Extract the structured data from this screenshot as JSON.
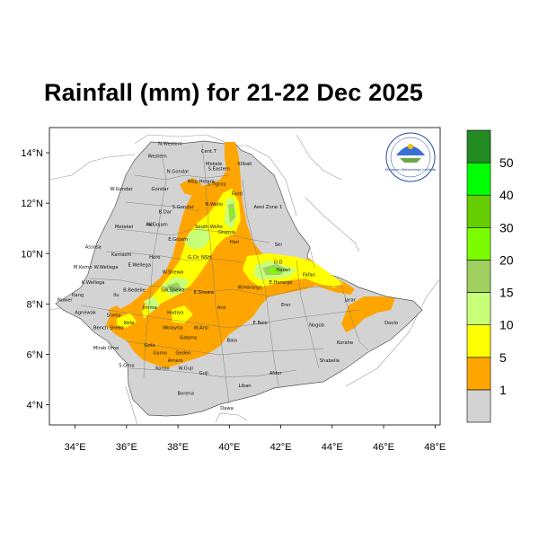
{
  "title": "Rainfall (mm) for 21-22 Dec 2025",
  "colors": {
    "land": "#d3d3d3",
    "border": "#6e6e6e",
    "bin_1": "#ffa500",
    "bin_5": "#ffff00",
    "bin_10": "#c8ff78",
    "bin_15": "#a0d060",
    "bin_20": "#7cfc00",
    "bin_30": "#66cd00",
    "bin_40": "#00ff00",
    "bin_50": "#228b22"
  },
  "axes": {
    "lon_ticks": [
      "34°E",
      "36°E",
      "38°E",
      "40°E",
      "42°E",
      "44°E",
      "46°E",
      "48°E"
    ],
    "lat_ticks": [
      "14°N",
      "12°N",
      "10°N",
      "8°N",
      "6°N",
      "4°N"
    ]
  },
  "colorbar": {
    "labels": [
      "1",
      "5",
      "10",
      "15",
      "20",
      "30",
      "40",
      "50"
    ]
  },
  "regions": [
    {
      "name": "N.Western",
      "lon": 37.7,
      "lat": 14.3
    },
    {
      "name": "Cent.T",
      "lon": 39.2,
      "lat": 14.0
    },
    {
      "name": "Western",
      "lon": 37.2,
      "lat": 13.8
    },
    {
      "name": "Mekele",
      "lon": 39.4,
      "lat": 13.5
    },
    {
      "name": "S.Eastern",
      "lon": 39.6,
      "lat": 13.3
    },
    {
      "name": "Kilbati",
      "lon": 40.6,
      "lat": 13.5
    },
    {
      "name": "N.Gondar",
      "lon": 38.0,
      "lat": 13.2
    },
    {
      "name": "S.Tigray",
      "lon": 39.5,
      "lat": 12.7
    },
    {
      "name": "W.Gondar",
      "lon": 35.8,
      "lat": 12.5
    },
    {
      "name": "Gondar",
      "lon": 37.3,
      "lat": 12.5
    },
    {
      "name": "Wag Hemra",
      "lon": 38.9,
      "lat": 12.8
    },
    {
      "name": "Fanti",
      "lon": 40.3,
      "lat": 12.3
    },
    {
      "name": "S.Gondar",
      "lon": 38.2,
      "lat": 11.8
    },
    {
      "name": "N.Wello",
      "lon": 39.4,
      "lat": 11.9
    },
    {
      "name": "Awsi Zone 1",
      "lon": 41.5,
      "lat": 11.8
    },
    {
      "name": "Metekel",
      "lon": 35.9,
      "lat": 11.0
    },
    {
      "name": "Awi",
      "lon": 36.9,
      "lat": 11.1
    },
    {
      "name": "B.Dar",
      "lon": 37.5,
      "lat": 11.6
    },
    {
      "name": "South Wollo",
      "lon": 39.2,
      "lat": 11.0
    },
    {
      "name": "Oromia",
      "lon": 39.9,
      "lat": 10.8
    },
    {
      "name": "W.Gojam",
      "lon": 37.2,
      "lat": 11.1
    },
    {
      "name": "E.Gojam",
      "lon": 38.0,
      "lat": 10.5
    },
    {
      "name": "Hari",
      "lon": 40.2,
      "lat": 10.4
    },
    {
      "name": "Siti",
      "lon": 41.9,
      "lat": 10.3
    },
    {
      "name": "Assosa",
      "lon": 34.7,
      "lat": 10.2
    },
    {
      "name": "Kamashi",
      "lon": 35.8,
      "lat": 9.9
    },
    {
      "name": "Horo",
      "lon": 37.1,
      "lat": 9.8
    },
    {
      "name": "NSH",
      "lon": 39.1,
      "lat": 9.8
    },
    {
      "name": "G.Ch",
      "lon": 38.6,
      "lat": 9.8
    },
    {
      "name": "D.D",
      "lon": 41.9,
      "lat": 9.6
    },
    {
      "name": "M.Komo",
      "lon": 34.3,
      "lat": 9.4
    },
    {
      "name": "W.Wellega",
      "lon": 35.2,
      "lat": 9.4
    },
    {
      "name": "E.Wellega",
      "lon": 36.5,
      "lat": 9.5
    },
    {
      "name": "W.Shewa",
      "lon": 37.8,
      "lat": 9.2
    },
    {
      "name": "Harari",
      "lon": 42.1,
      "lat": 9.3
    },
    {
      "name": "Fafan",
      "lon": 43.1,
      "lat": 9.1
    },
    {
      "name": "K.Wellega",
      "lon": 34.7,
      "lat": 8.8
    },
    {
      "name": "E.Hararge",
      "lon": 42.0,
      "lat": 8.8
    },
    {
      "name": "W.Hararge",
      "lon": 40.8,
      "lat": 8.6
    },
    {
      "name": "Itang",
      "lon": 34.1,
      "lat": 8.3
    },
    {
      "name": "Ilu",
      "lon": 35.6,
      "lat": 8.3
    },
    {
      "name": "B.Bedelle",
      "lon": 36.3,
      "lat": 8.5
    },
    {
      "name": "SW.Shewa",
      "lon": 37.8,
      "lat": 8.5
    },
    {
      "name": "E.Shewa",
      "lon": 39.0,
      "lat": 8.4
    },
    {
      "name": "Jarar",
      "lon": 44.7,
      "lat": 8.1
    },
    {
      "name": "Nuwer",
      "lon": 33.6,
      "lat": 8.1
    },
    {
      "name": "Jimma",
      "lon": 36.9,
      "lat": 7.8
    },
    {
      "name": "Arsi",
      "lon": 39.7,
      "lat": 7.8
    },
    {
      "name": "Erer",
      "lon": 42.2,
      "lat": 7.9
    },
    {
      "name": "Agnewak",
      "lon": 34.4,
      "lat": 7.6
    },
    {
      "name": "Sheka",
      "lon": 35.5,
      "lat": 7.5
    },
    {
      "name": "Hadiya",
      "lon": 37.9,
      "lat": 7.6
    },
    {
      "name": "E.Bale",
      "lon": 41.2,
      "lat": 7.2
    },
    {
      "name": "Nogob",
      "lon": 43.4,
      "lat": 7.1
    },
    {
      "name": "Kefa",
      "lon": 36.1,
      "lat": 7.2
    },
    {
      "name": "Bench Sheko",
      "lon": 35.3,
      "lat": 7.0
    },
    {
      "name": "Wolayita",
      "lon": 37.8,
      "lat": 7.0
    },
    {
      "name": "W.Arsi",
      "lon": 38.9,
      "lat": 7.0
    },
    {
      "name": "Doolo",
      "lon": 46.3,
      "lat": 7.2
    },
    {
      "name": "Sidama",
      "lon": 38.4,
      "lat": 6.6
    },
    {
      "name": "Bala",
      "lon": 40.1,
      "lat": 6.5
    },
    {
      "name": "Korahe",
      "lon": 44.5,
      "lat": 6.4
    },
    {
      "name": "Mirab Omo",
      "lon": 35.2,
      "lat": 6.2
    },
    {
      "name": "Gofa",
      "lon": 36.9,
      "lat": 6.3
    },
    {
      "name": "Gamo",
      "lon": 37.3,
      "lat": 6.0
    },
    {
      "name": "Gedeo",
      "lon": 38.2,
      "lat": 6.0
    },
    {
      "name": "Shabelle",
      "lon": 43.9,
      "lat": 5.7
    },
    {
      "name": "S.Omo",
      "lon": 36.0,
      "lat": 5.5
    },
    {
      "name": "Amaro",
      "lon": 37.9,
      "lat": 5.7
    },
    {
      "name": "W.Guji",
      "lon": 38.3,
      "lat": 5.4
    },
    {
      "name": "Guji",
      "lon": 39.0,
      "lat": 5.2
    },
    {
      "name": "Afder",
      "lon": 41.8,
      "lat": 5.2
    },
    {
      "name": "Konso",
      "lon": 37.4,
      "lat": 5.4
    },
    {
      "name": "Liban",
      "lon": 40.6,
      "lat": 4.7
    },
    {
      "name": "Borena",
      "lon": 38.3,
      "lat": 4.4
    },
    {
      "name": "Dawa",
      "lon": 39.9,
      "lat": 3.8
    }
  ]
}
